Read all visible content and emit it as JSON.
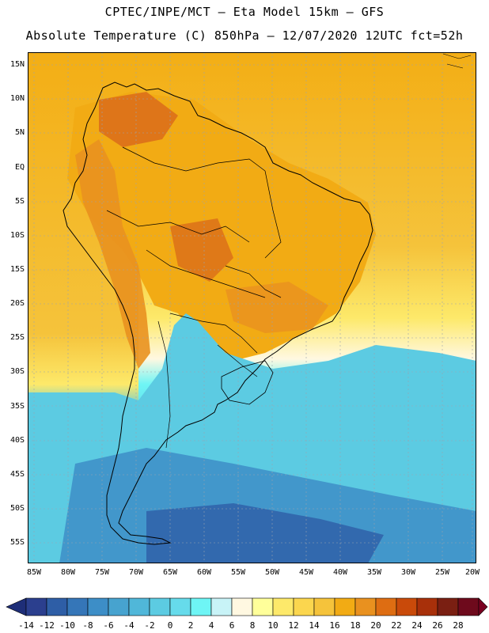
{
  "header": {
    "line1": "CPTEC/INPE/MCT  –   Eta Model 15km  –  GFS",
    "line2": "Absolute Temperature (C) 850hPa – 12/07/2020 12UTC fct=52h"
  },
  "axes": {
    "lat_labels": [
      "15N",
      "10N",
      "5N",
      "EQ",
      "5S",
      "10S",
      "15S",
      "20S",
      "25S",
      "30S",
      "35S",
      "40S",
      "45S",
      "50S",
      "55S"
    ],
    "lon_labels": [
      "85W",
      "80W",
      "75W",
      "70W",
      "65W",
      "60W",
      "55W",
      "50W",
      "45W",
      "40W",
      "35W",
      "30W",
      "25W",
      "20W"
    ]
  },
  "colorbar": {
    "labels": [
      "-14",
      "-12",
      "-10",
      "-8",
      "-6",
      "-4",
      "-2",
      "0",
      "2",
      "4",
      "6",
      "8",
      "10",
      "12",
      "14",
      "16",
      "18",
      "20",
      "22",
      "24",
      "26",
      "28"
    ],
    "colors": [
      "#2b3f8e",
      "#2e5ea6",
      "#3576b8",
      "#3d8ec7",
      "#47a3cf",
      "#50b7d9",
      "#5ccbe2",
      "#66dbeb",
      "#6ef5f5",
      "#c8f3f7",
      "#fff8e1",
      "#ffff9a",
      "#fde96a",
      "#fbd64e",
      "#f5c33b",
      "#f2ab14",
      "#e9911f",
      "#de6d12",
      "#c94a0a",
      "#a8300a",
      "#7a1f12",
      "#6e0a1c",
      "#8a0020"
    ],
    "left_arrow_color": "#1e2e78",
    "right_arrow_color": "#7a0020"
  },
  "map": {
    "ocean_colors": {
      "tropical": "#f3ae15",
      "subtropical": "#fbd64e",
      "transition": "#fff8e1",
      "cold": "#5ccbe2",
      "very_cold": "#3576b8"
    },
    "land_colors": {
      "warm": "#f2ab14",
      "hot": "#e9911f",
      "very_hot": "#d8681a"
    },
    "coastline_color": "#000000",
    "grid_color": "#9aa4b0"
  }
}
